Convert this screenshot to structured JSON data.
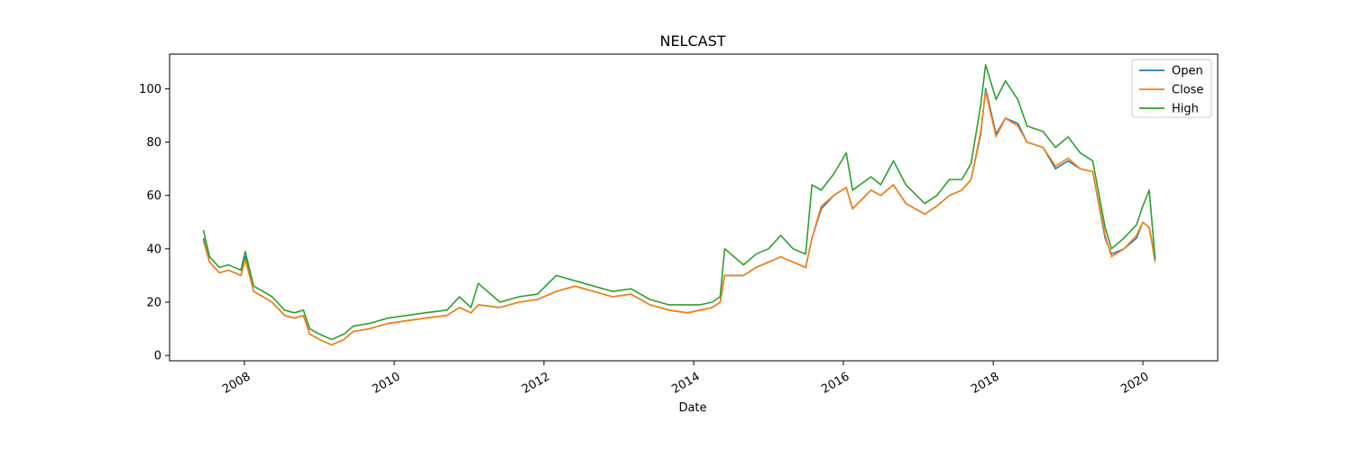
{
  "chart_data": {
    "type": "line",
    "title": "NELCAST",
    "xlabel": "Date",
    "ylabel": "",
    "xlim": [
      "2007-01-01",
      "2020-12-31"
    ],
    "ylim": [
      -2,
      113
    ],
    "x_ticks": [
      "2008",
      "2010",
      "2012",
      "2014",
      "2016",
      "2018",
      "2020"
    ],
    "y_ticks": [
      0,
      20,
      40,
      60,
      80,
      100
    ],
    "grid": false,
    "legend_position": "top-right",
    "colors": {
      "Open": "#1f77b4",
      "Close": "#ff7f0e",
      "High": "#2ca02c"
    },
    "x": [
      "2007-06-15",
      "2007-07-15",
      "2007-09-01",
      "2007-10-15",
      "2007-12-15",
      "2008-01-05",
      "2008-02-15",
      "2008-04-01",
      "2008-05-15",
      "2008-07-15",
      "2008-09-01",
      "2008-10-15",
      "2008-11-15",
      "2009-01-01",
      "2009-03-01",
      "2009-05-01",
      "2009-06-15",
      "2009-09-01",
      "2009-12-01",
      "2010-06-01",
      "2010-09-15",
      "2010-11-15",
      "2011-01-10",
      "2011-02-15",
      "2011-06-01",
      "2011-09-01",
      "2011-12-01",
      "2012-03-01",
      "2012-06-01",
      "2012-09-01",
      "2012-12-01",
      "2013-03-01",
      "2013-06-01",
      "2013-09-01",
      "2013-12-01",
      "2014-02-01",
      "2014-04-01",
      "2014-05-10",
      "2014-06-01",
      "2014-09-01",
      "2014-11-01",
      "2015-01-01",
      "2015-03-01",
      "2015-05-01",
      "2015-07-01",
      "2015-08-01",
      "2015-09-15",
      "2015-11-15",
      "2016-01-15",
      "2016-02-15",
      "2016-05-15",
      "2016-07-01",
      "2016-09-01",
      "2016-11-01",
      "2017-02-01",
      "2017-04-01",
      "2017-06-01",
      "2017-08-01",
      "2017-09-15",
      "2017-11-01",
      "2017-11-25",
      "2018-01-15",
      "2018-03-01",
      "2018-05-01",
      "2018-06-15",
      "2018-09-01",
      "2018-11-01",
      "2019-01-01",
      "2019-03-01",
      "2019-05-01",
      "2019-07-01",
      "2019-08-01",
      "2019-10-01",
      "2019-12-01",
      "2020-01-01",
      "2020-02-01",
      "2020-03-01"
    ],
    "series": [
      {
        "name": "Open",
        "values": [
          44,
          35,
          31,
          32,
          30,
          37,
          24,
          22,
          20,
          15,
          14,
          15,
          8,
          6,
          4,
          6,
          9,
          10,
          12,
          14,
          15,
          18,
          16,
          19,
          18,
          20,
          21,
          24,
          26,
          24,
          22,
          23,
          19,
          17,
          16,
          17,
          18,
          20,
          30,
          30,
          33,
          35,
          37,
          35,
          33,
          44,
          55,
          60,
          63,
          55,
          62,
          60,
          64,
          57,
          53,
          56,
          60,
          62,
          66,
          83,
          100,
          83,
          89,
          87,
          80,
          78,
          70,
          73,
          70,
          69,
          44,
          38,
          40,
          44,
          50,
          48,
          36
        ]
      },
      {
        "name": "Close",
        "values": [
          43,
          35,
          31,
          32,
          30,
          36,
          24,
          22,
          20,
          15,
          14,
          15,
          8,
          6,
          4,
          6,
          9,
          10,
          12,
          14,
          15,
          18,
          16,
          19,
          18,
          20,
          21,
          24,
          26,
          24,
          22,
          23,
          19,
          17,
          16,
          17,
          18,
          20,
          30,
          30,
          33,
          35,
          37,
          35,
          33,
          44,
          56,
          60,
          63,
          55,
          62,
          60,
          64,
          57,
          53,
          56,
          60,
          62,
          66,
          84,
          99,
          82,
          89,
          86,
          80,
          78,
          71,
          74,
          70,
          69,
          45,
          37,
          40,
          45,
          50,
          48,
          35
        ]
      },
      {
        "name": "High",
        "values": [
          47,
          37,
          33,
          34,
          32,
          39,
          26,
          24,
          22,
          17,
          16,
          17,
          10,
          8,
          6,
          8,
          11,
          12,
          14,
          16,
          17,
          22,
          18,
          27,
          20,
          22,
          23,
          30,
          28,
          26,
          24,
          25,
          21,
          19,
          19,
          19,
          20,
          22,
          40,
          34,
          38,
          40,
          45,
          40,
          38,
          64,
          62,
          68,
          76,
          62,
          67,
          64,
          73,
          64,
          57,
          60,
          66,
          66,
          72,
          94,
          109,
          96,
          103,
          96,
          86,
          84,
          78,
          82,
          76,
          73,
          48,
          40,
          44,
          49,
          56,
          62,
          36
        ]
      }
    ]
  }
}
